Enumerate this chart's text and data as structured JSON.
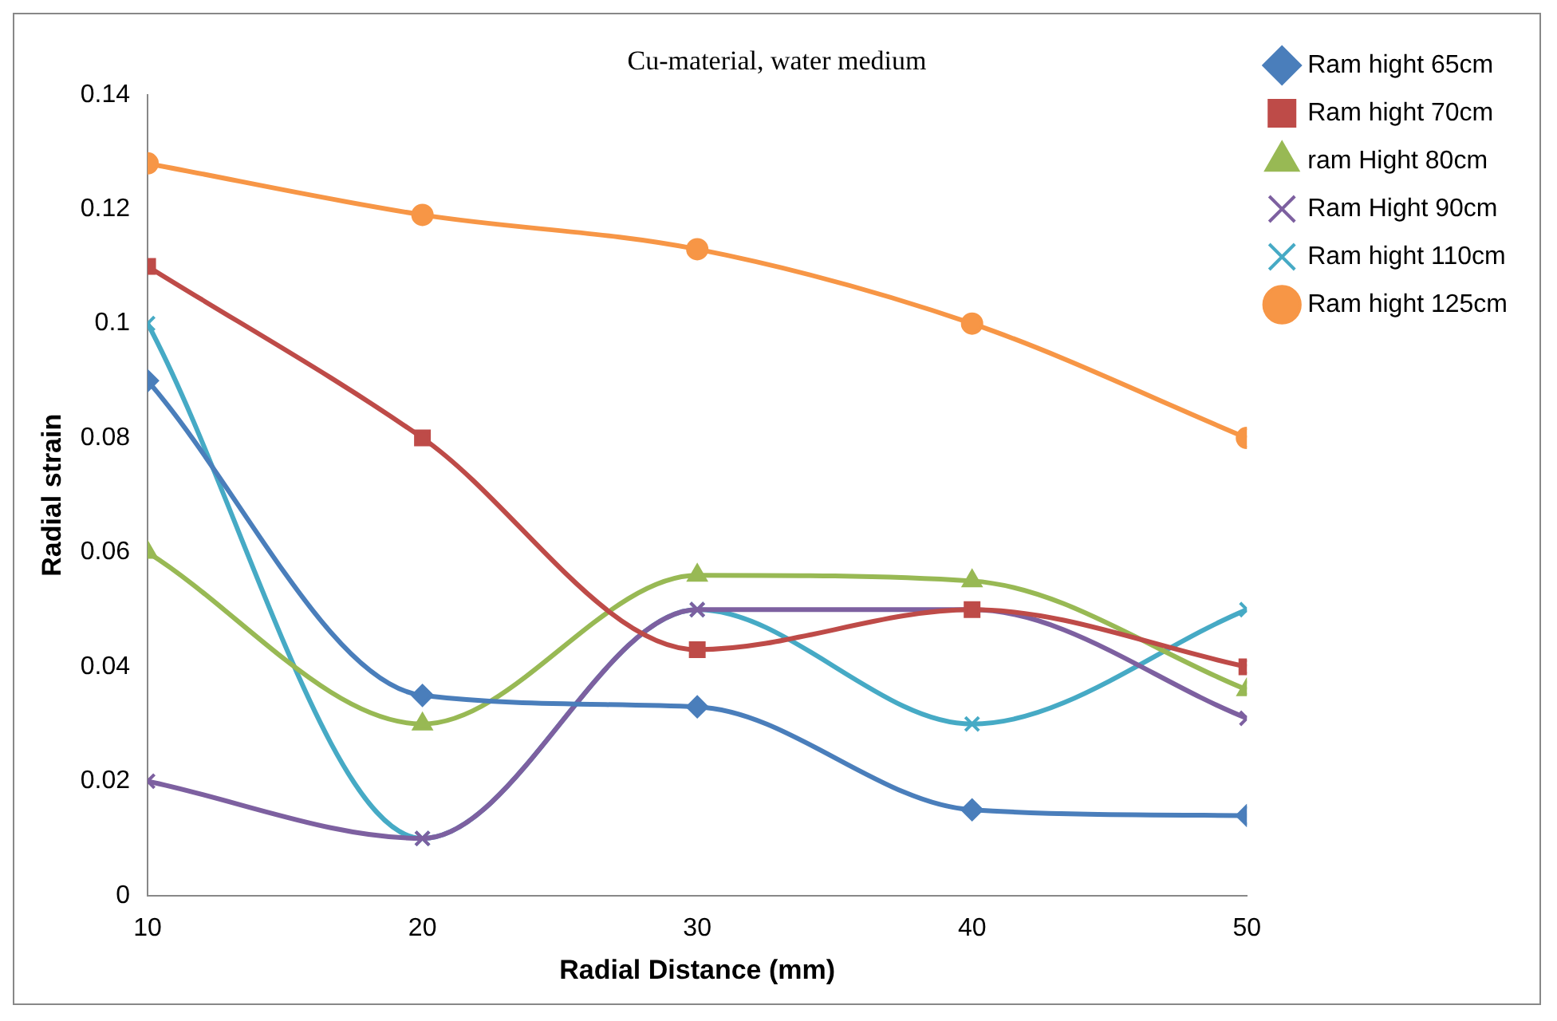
{
  "chart_data": {
    "type": "line",
    "title": "Cu-material, water medium",
    "xlabel": "Radial Distance (mm)",
    "ylabel": "Radial strain",
    "x": [
      10,
      20,
      30,
      40,
      50
    ],
    "xlim": [
      10,
      50
    ],
    "xticks": [
      10,
      20,
      30,
      40,
      50
    ],
    "ylim": [
      0,
      0.14
    ],
    "yticks": [
      0,
      0.02,
      0.04,
      0.06,
      0.08,
      0.1,
      0.12,
      0.14
    ],
    "grid": false,
    "legend": "right",
    "series": [
      {
        "name": "Ram hight 65cm",
        "color": "#4a7ebb",
        "marker": "diamond",
        "values": [
          0.09,
          0.035,
          0.033,
          0.015,
          0.014
        ]
      },
      {
        "name": "Ram hight 70cm",
        "color": "#be4b48",
        "marker": "square",
        "values": [
          0.11,
          0.08,
          0.043,
          0.05,
          0.04
        ]
      },
      {
        "name": "ram Hight 80cm",
        "color": "#98b954",
        "marker": "triangle",
        "values": [
          0.06,
          0.03,
          0.056,
          0.055,
          0.036
        ]
      },
      {
        "name": "Ram Hight 90cm",
        "color": "#7d60a0",
        "marker": "cross",
        "values": [
          0.02,
          0.01,
          0.05,
          0.05,
          0.031
        ]
      },
      {
        "name": "Ram hight 110cm",
        "color": "#46aac5",
        "marker": "cross",
        "values": [
          0.1,
          0.01,
          0.05,
          0.03,
          0.05
        ]
      },
      {
        "name": "Ram hight 125cm",
        "color": "#f79646",
        "marker": "circle",
        "values": [
          0.128,
          0.119,
          0.113,
          0.1,
          0.08
        ]
      }
    ]
  }
}
